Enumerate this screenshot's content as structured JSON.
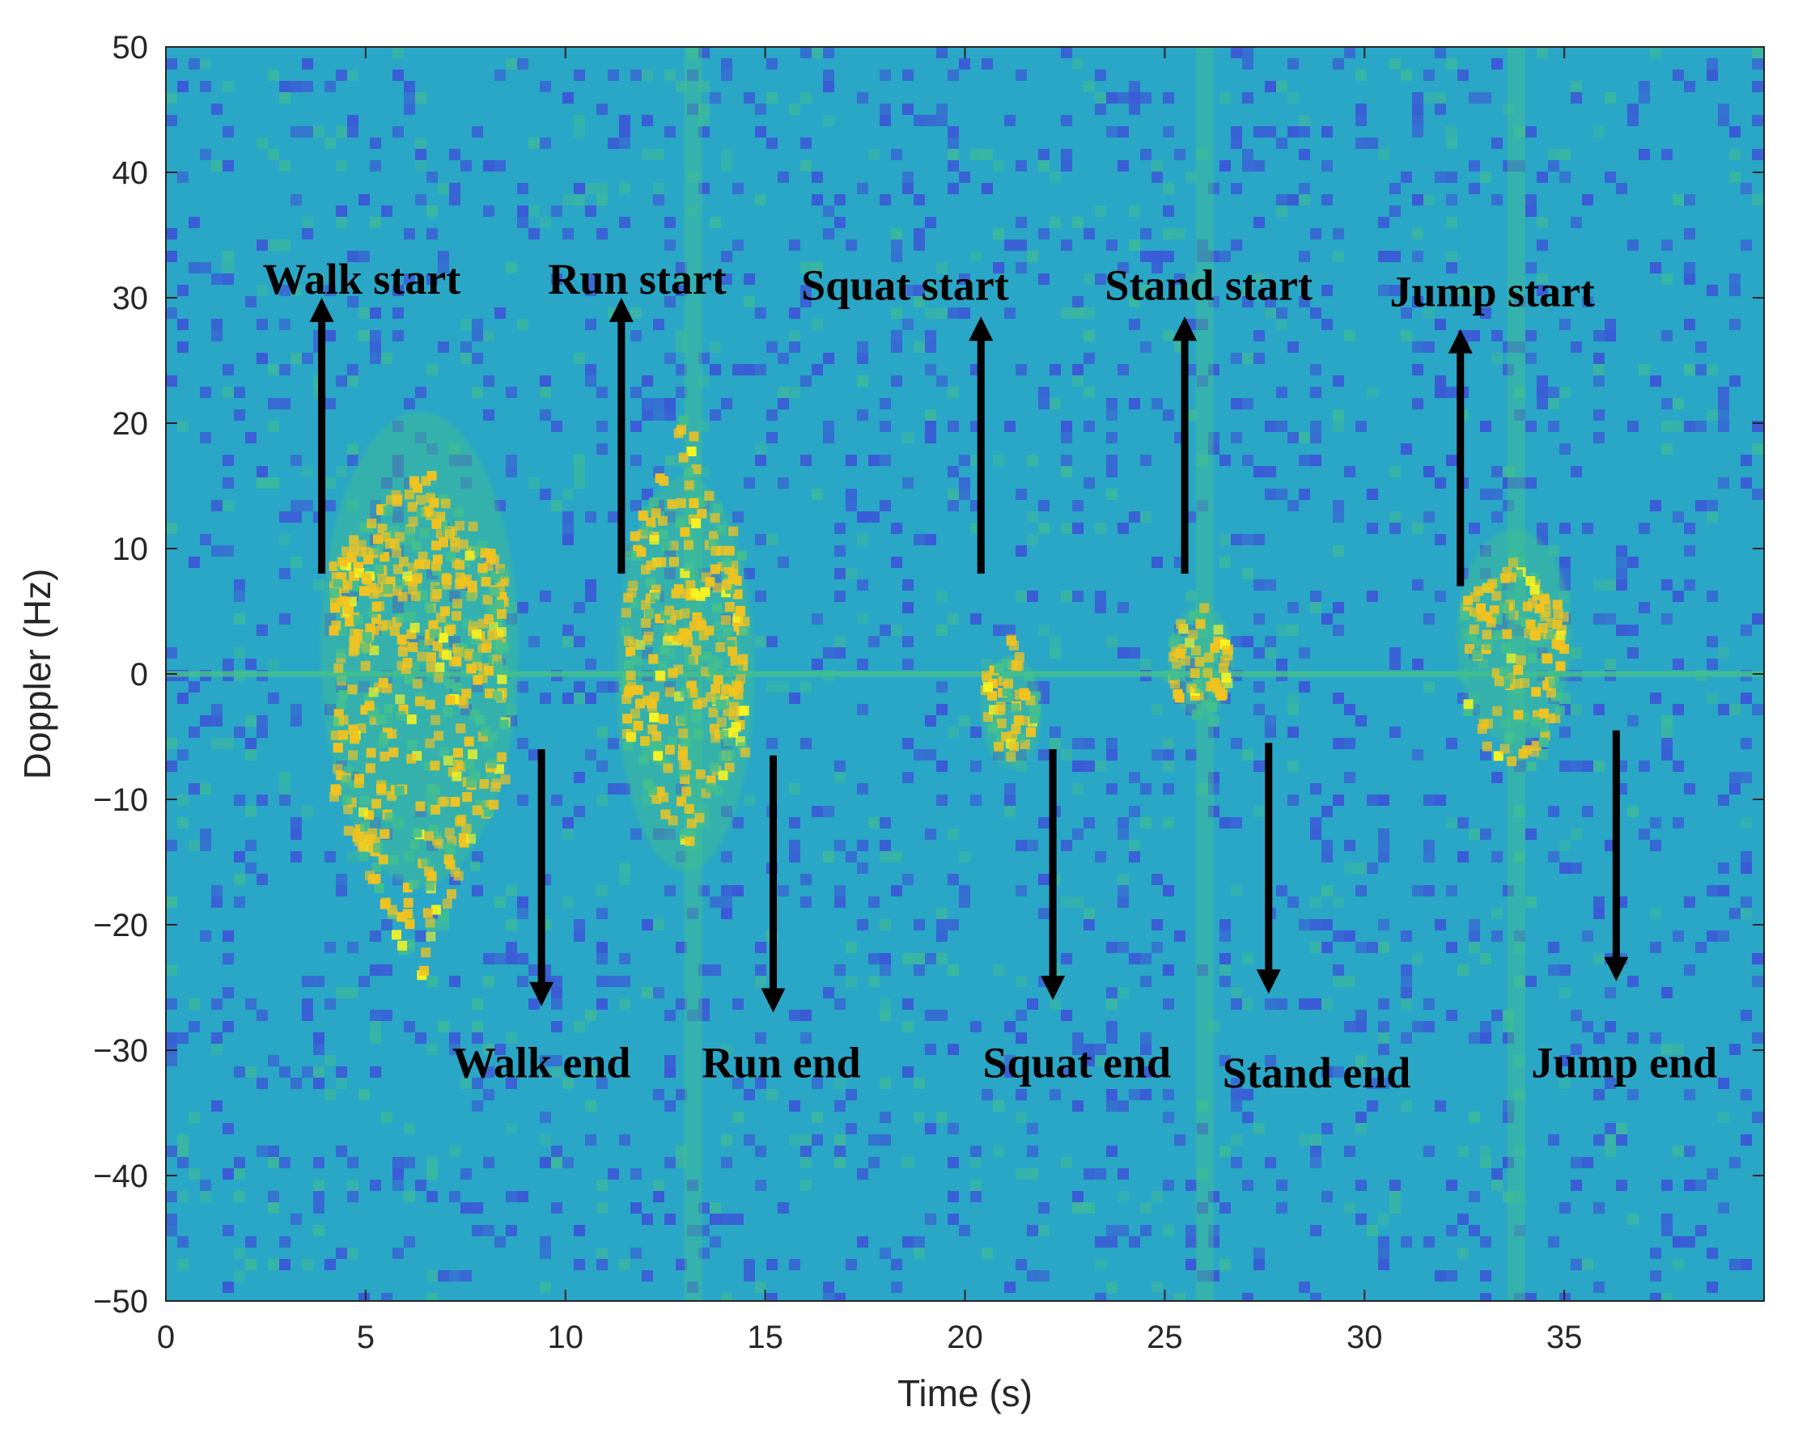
{
  "chart_data": {
    "type": "heatmap",
    "title": "",
    "xlabel": "Time (s)",
    "ylabel": "Doppler (Hz)",
    "xlim": [
      0,
      40
    ],
    "ylim": [
      -50,
      50
    ],
    "x_ticks": [
      0,
      5,
      10,
      15,
      20,
      25,
      30,
      35
    ],
    "y_ticks": [
      50,
      40,
      30,
      20,
      10,
      0,
      -10,
      -20,
      -30,
      -40,
      -50
    ],
    "x_tick_labels": [
      "0",
      "5",
      "10",
      "15",
      "20",
      "25",
      "30",
      "35"
    ],
    "y_tick_labels": [
      "50",
      "40",
      "30",
      "20",
      "10",
      "0",
      "−10",
      "−20",
      "−30",
      "−40",
      "−50"
    ],
    "grid": false,
    "colormap": "parula",
    "colors": {
      "background": "#2aa6c6",
      "noise_low": "#3c52d8",
      "mid": "#43c08d",
      "high": "#f2c31f",
      "peak": "#f9f420",
      "annotation": "#000000"
    },
    "zero_doppler_line_hz": 0,
    "activities": [
      {
        "name": "Walk",
        "start_s": 4.2,
        "end_s": 8.5,
        "min_hz": -25,
        "max_hz": 17,
        "center_hz": 2
      },
      {
        "name": "Run",
        "start_s": 11.5,
        "end_s": 14.5,
        "min_hz": -14,
        "max_hz": 21,
        "center_hz": 0
      },
      {
        "name": "Squat",
        "start_s": 20.5,
        "end_s": 21.8,
        "min_hz": -7,
        "max_hz": 3,
        "center_hz": -3
      },
      {
        "name": "Stand",
        "start_s": 25.2,
        "end_s": 26.6,
        "min_hz": -4,
        "max_hz": 6,
        "center_hz": 1
      },
      {
        "name": "Jump",
        "start_s": 32.5,
        "end_s": 35.0,
        "min_hz": -10,
        "max_hz": 9,
        "center_hz": 3
      }
    ],
    "vertical_streaks_s": [
      13.2,
      26.0,
      33.8
    ],
    "annotations": [
      {
        "text": "Walk start",
        "x": 3.9,
        "y_from": 8,
        "y_to": 30,
        "direction": "up",
        "label_x": 4.9,
        "label_y": 31.5
      },
      {
        "text": "Run start",
        "x": 11.4,
        "y_from": 8,
        "y_to": 30,
        "direction": "up",
        "label_x": 11.8,
        "label_y": 31.5
      },
      {
        "text": "Squat start",
        "x": 20.4,
        "y_from": 8,
        "y_to": 28.5,
        "direction": "up",
        "label_x": 18.5,
        "label_y": 31
      },
      {
        "text": "Stand start",
        "x": 25.5,
        "y_from": 8,
        "y_to": 28.5,
        "direction": "up",
        "label_x": 26.1,
        "label_y": 31
      },
      {
        "text": "Jump start",
        "x": 32.4,
        "y_from": 7,
        "y_to": 27.5,
        "direction": "up",
        "label_x": 33.2,
        "label_y": 30.5
      },
      {
        "text": "Walk end",
        "x": 9.4,
        "y_from": -6,
        "y_to": -26.5,
        "direction": "down",
        "label_x": 9.4,
        "label_y": -31
      },
      {
        "text": "Run end",
        "x": 15.2,
        "y_from": -6.5,
        "y_to": -27,
        "direction": "down",
        "label_x": 15.4,
        "label_y": -31
      },
      {
        "text": "Squat end",
        "x": 22.2,
        "y_from": -6,
        "y_to": -26,
        "direction": "down",
        "label_x": 22.8,
        "label_y": -31
      },
      {
        "text": "Stand end",
        "x": 27.6,
        "y_from": -5.5,
        "y_to": -25.5,
        "direction": "down",
        "label_x": 28.8,
        "label_y": -31.8
      },
      {
        "text": "Jump end",
        "x": 36.3,
        "y_from": -4.5,
        "y_to": -24.5,
        "direction": "down",
        "label_x": 36.5,
        "label_y": -31
      }
    ]
  }
}
